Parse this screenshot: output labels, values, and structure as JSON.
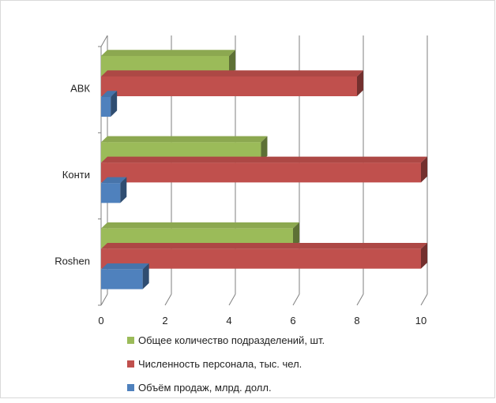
{
  "chart_data": {
    "type": "bar",
    "orientation": "horizontal",
    "style": "3d-clustered",
    "categories": [
      "АВК",
      "Конти",
      "Roshen"
    ],
    "series": [
      {
        "name": "Общее количество подразделений, шт.",
        "color": "#9bbb59",
        "values": [
          4,
          5,
          6
        ]
      },
      {
        "name": "Численность персонала, тыс. чел.",
        "color": "#c0504d",
        "values": [
          8,
          10,
          10
        ]
      },
      {
        "name": "Объём продаж, млрд. долл.",
        "color": "#4f81bd",
        "values": [
          0.3,
          0.6,
          1.3
        ]
      }
    ],
    "xlim": [
      0,
      10
    ],
    "x_ticks": [
      "0",
      "2",
      "4",
      "6",
      "8",
      "10"
    ],
    "grid": true,
    "legend_position": "bottom"
  }
}
